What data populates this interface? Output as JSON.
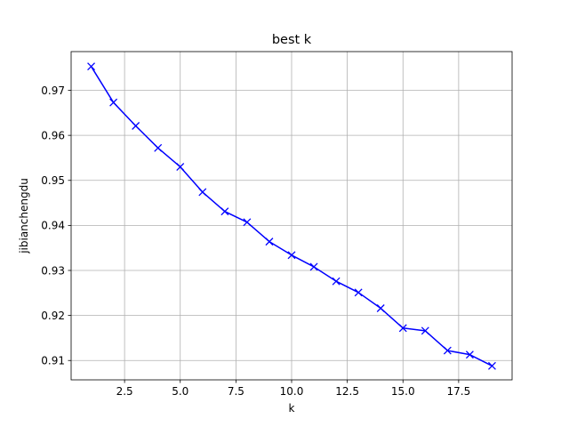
{
  "chart_data": {
    "type": "line",
    "title": "best k",
    "xlabel": "k",
    "ylabel": "jibianchengdu",
    "xlim": [
      0.1,
      19.9
    ],
    "ylim": [
      0.9057,
      0.9786
    ],
    "x_ticks": [
      2.5,
      5.0,
      7.5,
      10.0,
      12.5,
      15.0,
      17.5
    ],
    "x_tick_labels": [
      "2.5",
      "5.0",
      "7.5",
      "10.0",
      "12.5",
      "15.0",
      "17.5"
    ],
    "y_ticks": [
      0.91,
      0.92,
      0.93,
      0.94,
      0.95,
      0.96,
      0.97
    ],
    "y_tick_labels": [
      "0.91",
      "0.92",
      "0.93",
      "0.94",
      "0.95",
      "0.96",
      "0.97"
    ],
    "grid": true,
    "series": [
      {
        "color": "#0000ff",
        "marker": "x",
        "x": [
          1,
          2,
          3,
          4,
          5,
          6,
          7,
          8,
          9,
          10,
          11,
          12,
          13,
          14,
          15,
          16,
          17,
          18,
          19
        ],
        "y": [
          0.9753,
          0.9673,
          0.9621,
          0.9572,
          0.953,
          0.9474,
          0.9431,
          0.9407,
          0.9364,
          0.9334,
          0.9308,
          0.9276,
          0.9251,
          0.9216,
          0.9172,
          0.9166,
          0.9122,
          0.9113,
          0.9088
        ]
      }
    ]
  }
}
